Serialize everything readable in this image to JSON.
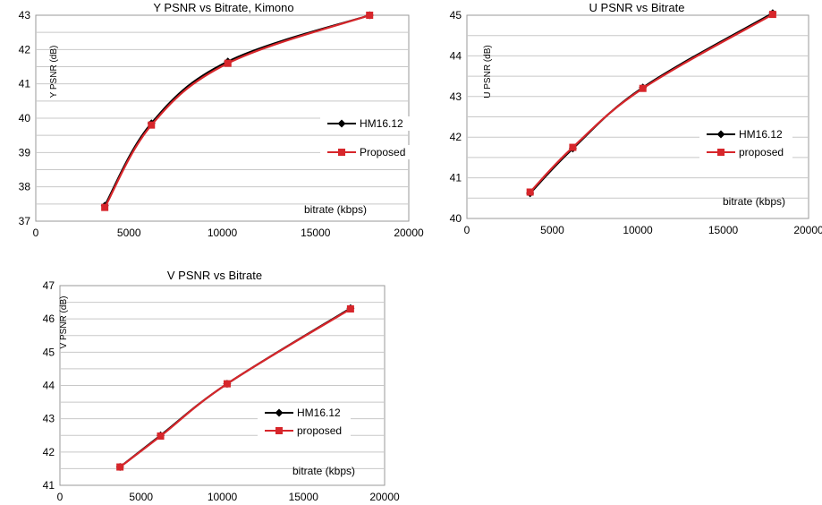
{
  "colors": {
    "hm": "#000000",
    "proposed": "#d7262b",
    "grid": "#c8c8c8"
  },
  "chart_data": [
    {
      "type": "line",
      "title": "Y PSNR vs Bitrate, Kimono",
      "ylabel": "Y PSNR (dB)",
      "xlabel": "bitrate (kbps)",
      "xlim": [
        0,
        20000
      ],
      "ylim": [
        37,
        43
      ],
      "xticks": [
        0,
        5000,
        10000,
        15000,
        20000
      ],
      "yticks": [
        37,
        38,
        39,
        40,
        41,
        42,
        43
      ],
      "grid": true,
      "legend": "right",
      "series": [
        {
          "name": "HM16.12",
          "marker": "diamond",
          "x": [
            3700,
            6200,
            10300,
            17900
          ],
          "y": [
            37.45,
            39.85,
            41.65,
            43.0
          ]
        },
        {
          "name": "Proposed",
          "marker": "square",
          "x": [
            3700,
            6200,
            10300,
            17900
          ],
          "y": [
            37.4,
            39.8,
            41.6,
            43.0
          ]
        }
      ]
    },
    {
      "type": "line",
      "title": "U PSNR vs Bitrate",
      "ylabel": "U PSNR (dB)",
      "xlabel": "bitrate (kbps)",
      "xlim": [
        0,
        20000
      ],
      "ylim": [
        40,
        45
      ],
      "xticks": [
        0,
        5000,
        10000,
        15000,
        20000
      ],
      "yticks": [
        40,
        41,
        42,
        43,
        44,
        45
      ],
      "grid": true,
      "legend": "right",
      "series": [
        {
          "name": "HM16.12",
          "marker": "diamond",
          "x": [
            3700,
            6200,
            10300,
            17900
          ],
          "y": [
            40.62,
            41.72,
            43.22,
            45.05
          ]
        },
        {
          "name": "proposed",
          "marker": "square",
          "x": [
            3700,
            6200,
            10300,
            17900
          ],
          "y": [
            40.65,
            41.75,
            43.2,
            45.02
          ]
        }
      ]
    },
    {
      "type": "line",
      "title": "V PSNR vs Bitrate",
      "ylabel": "V PSNR (dB)",
      "xlabel": "bitrate (kbps)",
      "xlim": [
        0,
        20000
      ],
      "ylim": [
        41,
        47
      ],
      "xticks": [
        0,
        5000,
        10000,
        15000,
        20000
      ],
      "yticks": [
        41,
        42,
        43,
        44,
        45,
        46,
        47
      ],
      "grid": true,
      "legend": "right",
      "series": [
        {
          "name": "HM16.12",
          "marker": "diamond",
          "x": [
            3700,
            6200,
            10300,
            17900
          ],
          "y": [
            41.55,
            42.5,
            44.05,
            46.32
          ]
        },
        {
          "name": "proposed",
          "marker": "square",
          "x": [
            3700,
            6200,
            10300,
            17900
          ],
          "y": [
            41.55,
            42.48,
            44.05,
            46.3
          ]
        }
      ]
    }
  ]
}
